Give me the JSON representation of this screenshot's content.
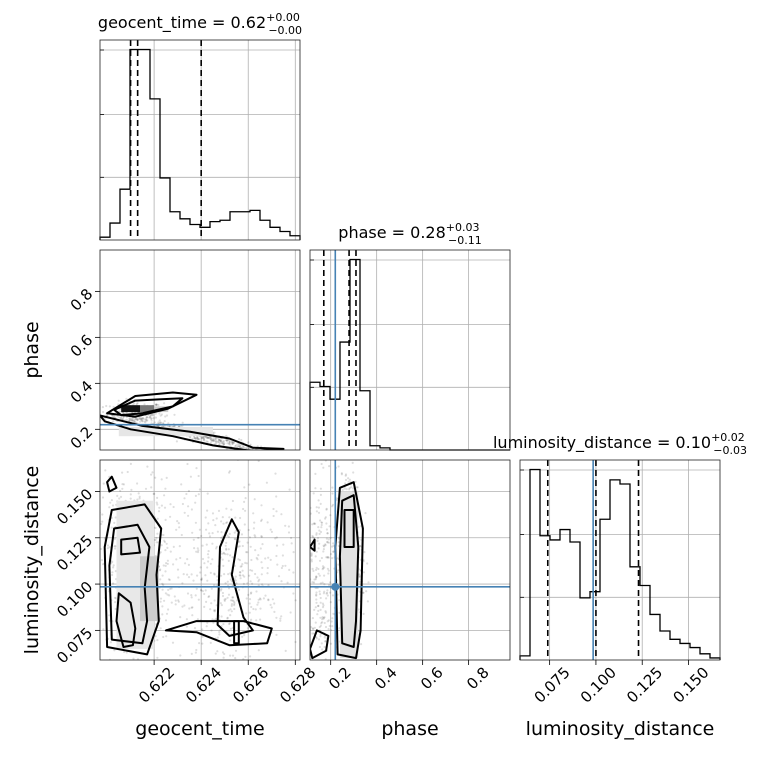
{
  "chart_data": {
    "type": "corner",
    "parameters": [
      {
        "name": "geocent_time",
        "label": "geocent_time",
        "range": [
          0.6197,
          0.6282
        ],
        "ticks": [
          "0.622",
          "0.624",
          "0.626",
          "0.628"
        ],
        "tick_values": [
          0.622,
          0.624,
          0.626,
          0.628
        ]
      },
      {
        "name": "phase",
        "label": "phase",
        "range": [
          0.11,
          0.98
        ],
        "ticks": [
          "0.2",
          "0.4",
          "0.6",
          "0.8"
        ],
        "tick_values": [
          0.2,
          0.4,
          0.6,
          0.8
        ]
      },
      {
        "name": "luminosity_distance",
        "label": "luminosity_distance",
        "range": [
          0.059,
          0.167
        ],
        "ticks": [
          "0.075",
          "0.100",
          "0.125",
          "0.150"
        ],
        "tick_values": [
          0.075,
          0.1,
          0.125,
          0.15
        ]
      }
    ],
    "titles": [
      {
        "base": "geocent_time = 0.62",
        "sup": "+0.00",
        "sub": "−0.00"
      },
      {
        "base": "phase = 0.28",
        "sup": "+0.03",
        "sub": "−0.11"
      },
      {
        "base": "luminosity_distance = 0.10",
        "sup": "+0.02",
        "sub": "−0.03"
      }
    ],
    "histograms": [
      {
        "param": "geocent_time",
        "values": [
          2,
          12,
          36,
          135,
          135,
          100,
          44,
          20,
          15,
          11,
          9,
          13,
          14,
          20,
          20,
          21,
          14,
          9,
          6,
          3
        ]
      },
      {
        "param": "phase",
        "values": [
          32,
          30,
          24,
          51,
          90,
          28,
          2,
          1,
          0,
          0,
          0,
          0,
          0,
          0,
          0,
          0,
          0,
          0,
          0,
          0
        ]
      },
      {
        "param": "luminosity_distance",
        "values": [
          2,
          92,
          60,
          58,
          63,
          57,
          30,
          33,
          68,
          87,
          85,
          45,
          36,
          22,
          14,
          10,
          8,
          6,
          3,
          1
        ]
      }
    ],
    "quantiles": {
      "geocent_time": [
        0.621,
        0.6213,
        0.624
      ],
      "phase": [
        0.17,
        0.28,
        0.31
      ],
      "luminosity_distance": [
        0.074,
        0.1,
        0.123
      ]
    },
    "truths": {
      "phase": 0.22,
      "luminosity_distance": 0.0985
    },
    "grid": true
  }
}
